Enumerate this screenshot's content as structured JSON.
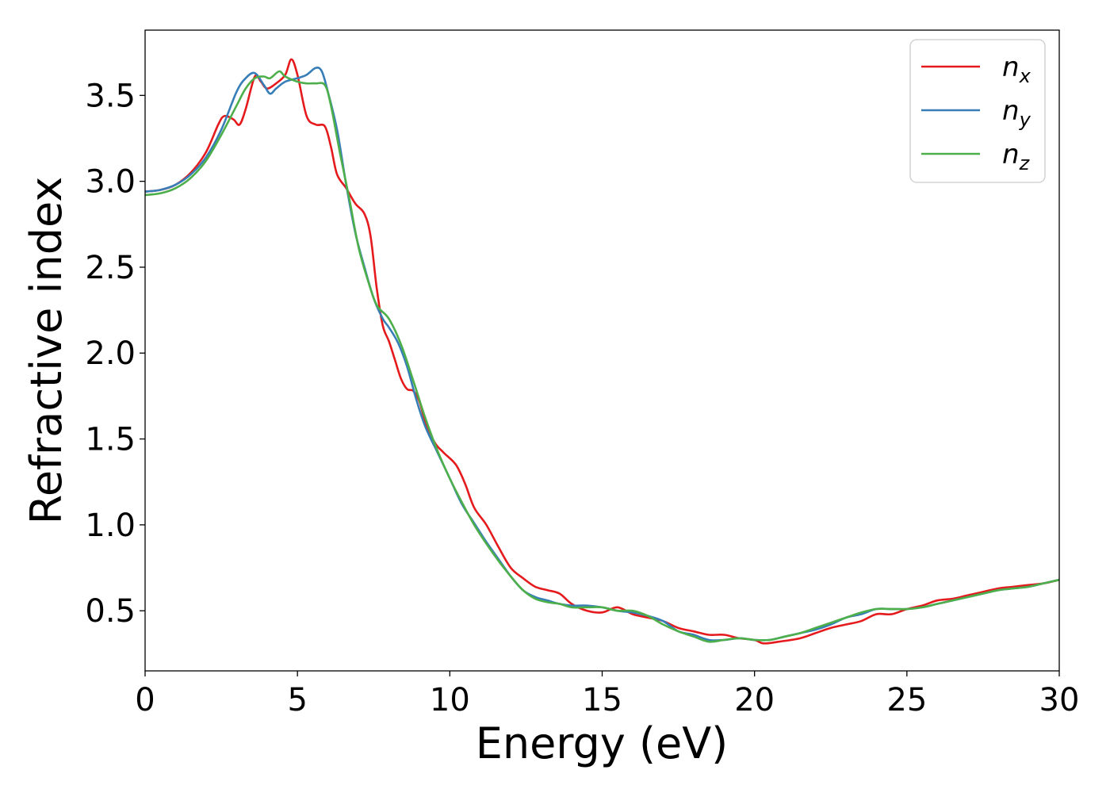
{
  "chart_data": {
    "type": "line",
    "title": "",
    "xlabel": "Energy (eV)",
    "ylabel": "Refractive index",
    "xlim": [
      0,
      30
    ],
    "ylim": [
      0.15,
      3.88
    ],
    "xticks": [
      "0",
      "5",
      "10",
      "15",
      "20",
      "25",
      "30"
    ],
    "yticks": [
      "0.5",
      "1.0",
      "1.5",
      "2.0",
      "2.5",
      "3.0",
      "3.5"
    ],
    "grid": false,
    "legend_position": "top-right",
    "legend": [
      {
        "base": "n",
        "sub": "x"
      },
      {
        "base": "n",
        "sub": "y"
      },
      {
        "base": "n",
        "sub": "z"
      }
    ],
    "series": [
      {
        "name": "n_x",
        "color": "#e41a1c",
        "points": [
          [
            0,
            2.94
          ],
          [
            0.5,
            2.95
          ],
          [
            1,
            2.98
          ],
          [
            1.5,
            3.05
          ],
          [
            2,
            3.17
          ],
          [
            2.4,
            3.33
          ],
          [
            2.6,
            3.38
          ],
          [
            2.9,
            3.36
          ],
          [
            3.1,
            3.33
          ],
          [
            3.3,
            3.42
          ],
          [
            3.6,
            3.61
          ],
          [
            3.8,
            3.58
          ],
          [
            4.0,
            3.54
          ],
          [
            4.3,
            3.57
          ],
          [
            4.6,
            3.62
          ],
          [
            4.8,
            3.71
          ],
          [
            5.0,
            3.62
          ],
          [
            5.3,
            3.38
          ],
          [
            5.6,
            3.33
          ],
          [
            5.9,
            3.32
          ],
          [
            6.1,
            3.2
          ],
          [
            6.3,
            3.04
          ],
          [
            6.6,
            2.96
          ],
          [
            6.9,
            2.87
          ],
          [
            7.2,
            2.81
          ],
          [
            7.4,
            2.68
          ],
          [
            7.6,
            2.38
          ],
          [
            7.8,
            2.16
          ],
          [
            8.0,
            2.07
          ],
          [
            8.2,
            1.96
          ],
          [
            8.4,
            1.85
          ],
          [
            8.6,
            1.79
          ],
          [
            8.8,
            1.78
          ],
          [
            9.0,
            1.72
          ],
          [
            9.2,
            1.6
          ],
          [
            9.5,
            1.48
          ],
          [
            9.8,
            1.42
          ],
          [
            10.2,
            1.35
          ],
          [
            10.5,
            1.24
          ],
          [
            10.8,
            1.1
          ],
          [
            11.2,
            1.0
          ],
          [
            11.6,
            0.87
          ],
          [
            12.0,
            0.75
          ],
          [
            12.4,
            0.69
          ],
          [
            12.8,
            0.64
          ],
          [
            13.2,
            0.62
          ],
          [
            13.6,
            0.6
          ],
          [
            14.0,
            0.54
          ],
          [
            14.5,
            0.5
          ],
          [
            15.0,
            0.49
          ],
          [
            15.5,
            0.52
          ],
          [
            16.0,
            0.48
          ],
          [
            16.5,
            0.46
          ],
          [
            17.0,
            0.44
          ],
          [
            17.5,
            0.4
          ],
          [
            18.0,
            0.38
          ],
          [
            18.5,
            0.36
          ],
          [
            19.0,
            0.36
          ],
          [
            19.5,
            0.34
          ],
          [
            20.0,
            0.33
          ],
          [
            20.3,
            0.31
          ],
          [
            20.8,
            0.32
          ],
          [
            21.5,
            0.34
          ],
          [
            22,
            0.37
          ],
          [
            22.5,
            0.4
          ],
          [
            23,
            0.42
          ],
          [
            23.5,
            0.44
          ],
          [
            24,
            0.48
          ],
          [
            24.5,
            0.48
          ],
          [
            25,
            0.51
          ],
          [
            25.5,
            0.53
          ],
          [
            26,
            0.56
          ],
          [
            26.5,
            0.57
          ],
          [
            27,
            0.59
          ],
          [
            27.5,
            0.61
          ],
          [
            28,
            0.63
          ],
          [
            28.5,
            0.64
          ],
          [
            29,
            0.65
          ],
          [
            29.5,
            0.66
          ],
          [
            30,
            0.68
          ]
        ]
      },
      {
        "name": "n_y",
        "color": "#377eb8",
        "points": [
          [
            0,
            2.94
          ],
          [
            0.5,
            2.95
          ],
          [
            1,
            2.98
          ],
          [
            1.5,
            3.04
          ],
          [
            2,
            3.14
          ],
          [
            2.5,
            3.3
          ],
          [
            3.0,
            3.52
          ],
          [
            3.3,
            3.6
          ],
          [
            3.6,
            3.63
          ],
          [
            3.9,
            3.56
          ],
          [
            4.1,
            3.51
          ],
          [
            4.3,
            3.54
          ],
          [
            4.6,
            3.58
          ],
          [
            5.0,
            3.6
          ],
          [
            5.3,
            3.62
          ],
          [
            5.6,
            3.66
          ],
          [
            5.8,
            3.64
          ],
          [
            6.0,
            3.52
          ],
          [
            6.3,
            3.3
          ],
          [
            6.6,
            2.98
          ],
          [
            6.9,
            2.7
          ],
          [
            7.2,
            2.5
          ],
          [
            7.5,
            2.32
          ],
          [
            7.8,
            2.2
          ],
          [
            8.0,
            2.15
          ],
          [
            8.3,
            2.06
          ],
          [
            8.6,
            1.92
          ],
          [
            8.9,
            1.73
          ],
          [
            9.2,
            1.57
          ],
          [
            9.6,
            1.42
          ],
          [
            10.0,
            1.27
          ],
          [
            10.4,
            1.12
          ],
          [
            10.8,
            1.01
          ],
          [
            11.2,
            0.9
          ],
          [
            11.6,
            0.8
          ],
          [
            12.0,
            0.7
          ],
          [
            12.4,
            0.62
          ],
          [
            12.8,
            0.58
          ],
          [
            13.2,
            0.56
          ],
          [
            13.6,
            0.54
          ],
          [
            14.0,
            0.53
          ],
          [
            14.5,
            0.53
          ],
          [
            15.0,
            0.52
          ],
          [
            15.5,
            0.5
          ],
          [
            16.0,
            0.49
          ],
          [
            16.5,
            0.47
          ],
          [
            17.0,
            0.44
          ],
          [
            17.5,
            0.38
          ],
          [
            18.0,
            0.36
          ],
          [
            18.5,
            0.33
          ],
          [
            19.0,
            0.33
          ],
          [
            19.5,
            0.34
          ],
          [
            20.0,
            0.33
          ],
          [
            20.5,
            0.33
          ],
          [
            21,
            0.35
          ],
          [
            21.5,
            0.37
          ],
          [
            22,
            0.39
          ],
          [
            22.5,
            0.42
          ],
          [
            23,
            0.46
          ],
          [
            23.5,
            0.48
          ],
          [
            24,
            0.51
          ],
          [
            24.5,
            0.51
          ],
          [
            25,
            0.51
          ],
          [
            25.5,
            0.52
          ],
          [
            26,
            0.54
          ],
          [
            26.5,
            0.56
          ],
          [
            27,
            0.58
          ],
          [
            27.5,
            0.6
          ],
          [
            28,
            0.62
          ],
          [
            28.5,
            0.63
          ],
          [
            29,
            0.64
          ],
          [
            29.5,
            0.66
          ],
          [
            30,
            0.68
          ]
        ]
      },
      {
        "name": "n_z",
        "color": "#4daf4a",
        "points": [
          [
            0,
            2.92
          ],
          [
            0.5,
            2.93
          ],
          [
            1,
            2.96
          ],
          [
            1.5,
            3.02
          ],
          [
            2,
            3.12
          ],
          [
            2.5,
            3.27
          ],
          [
            3.0,
            3.44
          ],
          [
            3.3,
            3.54
          ],
          [
            3.6,
            3.6
          ],
          [
            3.9,
            3.61
          ],
          [
            4.1,
            3.6
          ],
          [
            4.4,
            3.64
          ],
          [
            4.6,
            3.61
          ],
          [
            5.0,
            3.58
          ],
          [
            5.3,
            3.57
          ],
          [
            5.6,
            3.57
          ],
          [
            5.9,
            3.56
          ],
          [
            6.1,
            3.44
          ],
          [
            6.4,
            3.16
          ],
          [
            6.7,
            2.9
          ],
          [
            7.0,
            2.62
          ],
          [
            7.3,
            2.43
          ],
          [
            7.6,
            2.28
          ],
          [
            8.0,
            2.2
          ],
          [
            8.4,
            2.05
          ],
          [
            8.8,
            1.84
          ],
          [
            9.2,
            1.62
          ],
          [
            9.6,
            1.43
          ],
          [
            10.0,
            1.27
          ],
          [
            10.4,
            1.13
          ],
          [
            10.8,
            1.0
          ],
          [
            11.2,
            0.89
          ],
          [
            11.6,
            0.79
          ],
          [
            12.0,
            0.7
          ],
          [
            12.4,
            0.62
          ],
          [
            12.8,
            0.57
          ],
          [
            13.2,
            0.55
          ],
          [
            13.6,
            0.54
          ],
          [
            14.0,
            0.52
          ],
          [
            14.5,
            0.52
          ],
          [
            15.0,
            0.52
          ],
          [
            15.5,
            0.5
          ],
          [
            16.0,
            0.5
          ],
          [
            16.5,
            0.47
          ],
          [
            17.0,
            0.42
          ],
          [
            17.5,
            0.38
          ],
          [
            18.0,
            0.35
          ],
          [
            18.5,
            0.32
          ],
          [
            19.0,
            0.33
          ],
          [
            19.5,
            0.34
          ],
          [
            20.0,
            0.33
          ],
          [
            20.5,
            0.33
          ],
          [
            21,
            0.35
          ],
          [
            21.5,
            0.37
          ],
          [
            22,
            0.4
          ],
          [
            22.5,
            0.43
          ],
          [
            23,
            0.46
          ],
          [
            23.5,
            0.49
          ],
          [
            24,
            0.51
          ],
          [
            24.5,
            0.51
          ],
          [
            25,
            0.51
          ],
          [
            25.5,
            0.52
          ],
          [
            26,
            0.54
          ],
          [
            26.5,
            0.56
          ],
          [
            27,
            0.58
          ],
          [
            27.5,
            0.6
          ],
          [
            28,
            0.62
          ],
          [
            28.5,
            0.63
          ],
          [
            29,
            0.64
          ],
          [
            29.5,
            0.66
          ],
          [
            30,
            0.68
          ]
        ]
      }
    ]
  }
}
